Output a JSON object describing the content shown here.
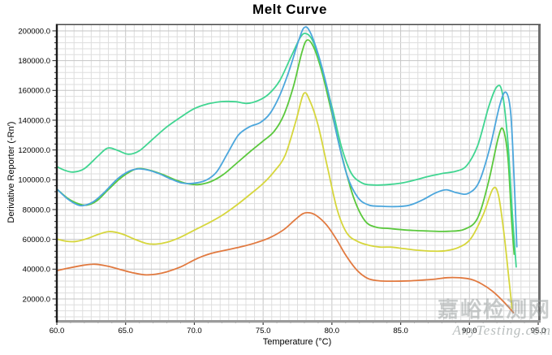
{
  "title": "Melt Curve",
  "watermark": {
    "line1": "嘉峪检测网",
    "line2": "AnyTesting.com"
  },
  "chart_data": {
    "type": "line",
    "title": "Melt Curve",
    "xlabel": "Temperature (°C)",
    "ylabel": "Derivative Reporter (-Rn′)",
    "xlim": [
      60,
      95
    ],
    "ylim": [
      5800,
      203800
    ],
    "x_ticks": [
      "60.0",
      "65.0",
      "70.0",
      "75.0",
      "80.0",
      "85.0",
      "90.0",
      "95.0"
    ],
    "x_tick_values": [
      60,
      65,
      70,
      75,
      80,
      85,
      90,
      95
    ],
    "y_ticks": [
      "20000.0",
      "40000.0",
      "60000.0",
      "80000.0",
      "100000.0",
      "120000.0",
      "140000.0",
      "160000.0",
      "180000.0",
      "200000.0"
    ],
    "y_tick_values": [
      20000,
      40000,
      60000,
      80000,
      100000,
      120000,
      140000,
      160000,
      180000,
      200000
    ],
    "grid": {
      "on": true,
      "minor_x_step": 0.625,
      "minor_y_step": 4000,
      "major_x_step": 5,
      "major_y_step": 20000,
      "minor_color": "#dedede",
      "major_color": "#c6c6c6"
    },
    "frame_colors": {
      "left": "#1b1b1b",
      "top": "#4a4a4a",
      "right": "#707070",
      "bottom": "#9b9b9b"
    },
    "series": [
      {
        "name": "series-orange",
        "color": "#e1793f",
        "points": [
          [
            60,
            39000
          ],
          [
            61,
            41000
          ],
          [
            62,
            42700
          ],
          [
            62.8,
            43300
          ],
          [
            63.7,
            42000
          ],
          [
            64.6,
            39800
          ],
          [
            65.5,
            37600
          ],
          [
            66.4,
            36200
          ],
          [
            67.2,
            36600
          ],
          [
            68,
            38200
          ],
          [
            69,
            41500
          ],
          [
            70,
            46200
          ],
          [
            70.7,
            49000
          ],
          [
            71.5,
            51200
          ],
          [
            72.5,
            53200
          ],
          [
            73.5,
            55200
          ],
          [
            74.5,
            57800
          ],
          [
            75.5,
            61200
          ],
          [
            76.5,
            66500
          ],
          [
            77.3,
            73000
          ],
          [
            77.9,
            77300
          ],
          [
            78.4,
            77800
          ],
          [
            78.9,
            75800
          ],
          [
            79.6,
            69800
          ],
          [
            80.3,
            60500
          ],
          [
            81,
            49500
          ],
          [
            81.8,
            39500
          ],
          [
            82.6,
            33800
          ],
          [
            83.4,
            32200
          ],
          [
            84.4,
            31900
          ],
          [
            85.5,
            32100
          ],
          [
            86.5,
            32600
          ],
          [
            87.5,
            33300
          ],
          [
            88.4,
            34300
          ],
          [
            89.3,
            34200
          ],
          [
            90.1,
            33200
          ],
          [
            90.9,
            30000
          ],
          [
            91.7,
            25000
          ],
          [
            92.5,
            18000
          ],
          [
            93.2,
            10800
          ]
        ]
      },
      {
        "name": "series-yellow",
        "color": "#d6d63c",
        "points": [
          [
            60,
            60200
          ],
          [
            60.7,
            58700
          ],
          [
            61.4,
            58600
          ],
          [
            62.2,
            60500
          ],
          [
            63,
            63300
          ],
          [
            63.8,
            65200
          ],
          [
            64.7,
            63800
          ],
          [
            65.6,
            60300
          ],
          [
            66.5,
            57300
          ],
          [
            67.2,
            56800
          ],
          [
            68,
            58000
          ],
          [
            69,
            61500
          ],
          [
            70,
            66200
          ],
          [
            71,
            70800
          ],
          [
            72,
            76000
          ],
          [
            73,
            82500
          ],
          [
            74,
            89800
          ],
          [
            75,
            97500
          ],
          [
            75.8,
            105500
          ],
          [
            76.6,
            116500
          ],
          [
            77.4,
            140000
          ],
          [
            77.95,
            157800
          ],
          [
            78.4,
            153000
          ],
          [
            79,
            136500
          ],
          [
            79.7,
            107500
          ],
          [
            80.4,
            79500
          ],
          [
            81.1,
            64000
          ],
          [
            81.9,
            58500
          ],
          [
            82.7,
            56000
          ],
          [
            83.5,
            54800
          ],
          [
            84.3,
            54800
          ],
          [
            85.2,
            53800
          ],
          [
            86.2,
            52700
          ],
          [
            87.2,
            52100
          ],
          [
            88.2,
            52300
          ],
          [
            89.2,
            54500
          ],
          [
            90.1,
            60500
          ],
          [
            91,
            76500
          ],
          [
            91.7,
            93800
          ],
          [
            92.1,
            90000
          ],
          [
            92.5,
            65000
          ],
          [
            92.85,
            35000
          ],
          [
            93.1,
            13500
          ]
        ]
      },
      {
        "name": "series-green",
        "color": "#5ac83c",
        "points": [
          [
            60,
            93800
          ],
          [
            60.8,
            87500
          ],
          [
            61.6,
            83800
          ],
          [
            62.2,
            83000
          ],
          [
            62.9,
            85800
          ],
          [
            63.7,
            93000
          ],
          [
            64.6,
            100800
          ],
          [
            65.4,
            105800
          ],
          [
            66,
            107600
          ],
          [
            66.8,
            106300
          ],
          [
            67.7,
            103500
          ],
          [
            68.6,
            100000
          ],
          [
            69.5,
            97400
          ],
          [
            70.3,
            96800
          ],
          [
            71.2,
            98800
          ],
          [
            72.1,
            103500
          ],
          [
            73,
            110500
          ],
          [
            74,
            118500
          ],
          [
            75,
            126000
          ],
          [
            75.8,
            132500
          ],
          [
            76.5,
            143500
          ],
          [
            77.2,
            162500
          ],
          [
            77.8,
            185000
          ],
          [
            78.2,
            193800
          ],
          [
            78.7,
            188500
          ],
          [
            79.3,
            171500
          ],
          [
            80,
            144500
          ],
          [
            80.8,
            113500
          ],
          [
            81.6,
            87500
          ],
          [
            82.4,
            72500
          ],
          [
            83.2,
            68200
          ],
          [
            84.2,
            67200
          ],
          [
            85.5,
            66200
          ],
          [
            87,
            65600
          ],
          [
            88.5,
            65400
          ],
          [
            89.7,
            67000
          ],
          [
            90.6,
            74500
          ],
          [
            91.4,
            99000
          ],
          [
            92.1,
            128500
          ],
          [
            92.45,
            133800
          ],
          [
            92.8,
            115000
          ],
          [
            93.05,
            75000
          ],
          [
            93.25,
            50000
          ]
        ]
      },
      {
        "name": "series-springgreen",
        "color": "#40d591",
        "points": [
          [
            60,
            108800
          ],
          [
            60.6,
            106300
          ],
          [
            61.2,
            105200
          ],
          [
            62,
            107500
          ],
          [
            63,
            116000
          ],
          [
            63.7,
            121300
          ],
          [
            64.4,
            119800
          ],
          [
            65.2,
            117200
          ],
          [
            66,
            119500
          ],
          [
            67,
            127500
          ],
          [
            68,
            135500
          ],
          [
            69,
            142000
          ],
          [
            70,
            147800
          ],
          [
            71,
            151000
          ],
          [
            72,
            152500
          ],
          [
            73,
            152400
          ],
          [
            73.8,
            151300
          ],
          [
            74.6,
            153000
          ],
          [
            75.4,
            157500
          ],
          [
            76.2,
            166500
          ],
          [
            77,
            182000
          ],
          [
            77.7,
            195500
          ],
          [
            78.1,
            198200
          ],
          [
            78.6,
            193500
          ],
          [
            79.2,
            177000
          ],
          [
            80,
            149000
          ],
          [
            80.7,
            122000
          ],
          [
            81.4,
            104500
          ],
          [
            82.2,
            97800
          ],
          [
            83,
            96500
          ],
          [
            84,
            96700
          ],
          [
            85,
            97700
          ],
          [
            86,
            99700
          ],
          [
            87,
            102200
          ],
          [
            88,
            104200
          ],
          [
            89,
            105700
          ],
          [
            89.8,
            109500
          ],
          [
            90.6,
            123000
          ],
          [
            91.4,
            149000
          ],
          [
            92,
            162500
          ],
          [
            92.4,
            158000
          ],
          [
            92.8,
            125000
          ],
          [
            93.1,
            80000
          ],
          [
            93.4,
            41500
          ]
        ]
      },
      {
        "name": "series-blue",
        "color": "#4ba6dc",
        "points": [
          [
            60,
            93800
          ],
          [
            60.8,
            87000
          ],
          [
            61.5,
            83200
          ],
          [
            62,
            82800
          ],
          [
            62.7,
            85500
          ],
          [
            63.5,
            92000
          ],
          [
            64.4,
            100500
          ],
          [
            65.2,
            105500
          ],
          [
            65.9,
            107300
          ],
          [
            66.6,
            106600
          ],
          [
            67.4,
            104200
          ],
          [
            68.3,
            100500
          ],
          [
            69.1,
            97800
          ],
          [
            69.9,
            97600
          ],
          [
            70.8,
            99500
          ],
          [
            71.6,
            105000
          ],
          [
            72.4,
            117500
          ],
          [
            73.2,
            130000
          ],
          [
            74,
            135500
          ],
          [
            74.8,
            138500
          ],
          [
            75.5,
            144500
          ],
          [
            76.2,
            156500
          ],
          [
            76.9,
            173500
          ],
          [
            77.6,
            194000
          ],
          [
            78,
            202300
          ],
          [
            78.4,
            199500
          ],
          [
            79,
            184500
          ],
          [
            79.7,
            160000
          ],
          [
            80.4,
            128500
          ],
          [
            81.1,
            103000
          ],
          [
            81.9,
            88000
          ],
          [
            82.7,
            83000
          ],
          [
            83.6,
            82200
          ],
          [
            84.6,
            82000
          ],
          [
            85.6,
            82800
          ],
          [
            86.6,
            86500
          ],
          [
            87.5,
            91000
          ],
          [
            88.3,
            93300
          ],
          [
            89.1,
            91200
          ],
          [
            89.9,
            90800
          ],
          [
            90.7,
            98500
          ],
          [
            91.5,
            122000
          ],
          [
            92.2,
            150000
          ],
          [
            92.65,
            158800
          ],
          [
            93,
            145000
          ],
          [
            93.25,
            100000
          ],
          [
            93.45,
            55000
          ]
        ]
      }
    ]
  }
}
